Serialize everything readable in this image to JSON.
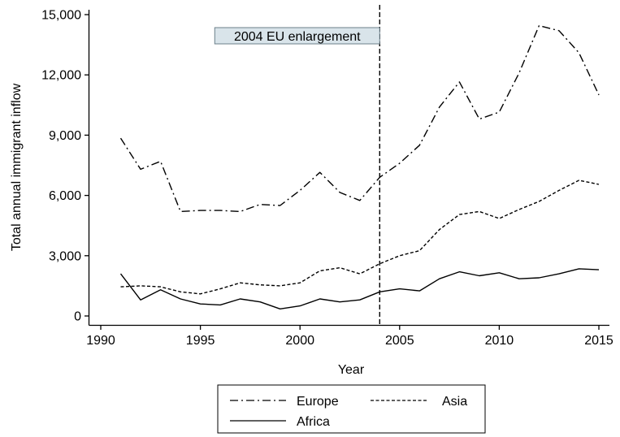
{
  "chart_data": {
    "type": "line",
    "xlabel": "Year",
    "ylabel": "Total annual immigrant inflow",
    "xlim": [
      1990,
      2015
    ],
    "ylim": [
      0,
      15000
    ],
    "xticks": [
      1990,
      1995,
      2000,
      2005,
      2010,
      2015
    ],
    "yticks": [
      0,
      3000,
      6000,
      9000,
      12000,
      15000
    ],
    "ytick_labels": [
      "0",
      "3,000",
      "6,000",
      "9,000",
      "12,000",
      "15,000"
    ],
    "grid": false,
    "legend_position": "bottom",
    "x": [
      1991,
      1992,
      1993,
      1994,
      1995,
      1996,
      1997,
      1998,
      1999,
      2000,
      2001,
      2002,
      2003,
      2004,
      2005,
      2006,
      2007,
      2008,
      2009,
      2010,
      2011,
      2012,
      2013,
      2014,
      2015
    ],
    "series": [
      {
        "name": "Europe",
        "style": "dash-dot",
        "color": "#000000",
        "values": [
          8850,
          7300,
          7700,
          5200,
          5250,
          5250,
          5200,
          5550,
          5500,
          6250,
          7150,
          6150,
          5750,
          6900,
          7600,
          8500,
          10400,
          11650,
          9800,
          10150,
          12100,
          14450,
          14200,
          13100,
          11000
        ]
      },
      {
        "name": "Asia",
        "style": "dashed",
        "color": "#000000",
        "values": [
          1450,
          1500,
          1450,
          1200,
          1100,
          1350,
          1650,
          1550,
          1500,
          1650,
          2250,
          2400,
          2100,
          2600,
          3000,
          3250,
          4300,
          5050,
          5200,
          4850,
          5300,
          5700,
          6250,
          6750,
          6550
        ]
      },
      {
        "name": "Africa",
        "style": "solid",
        "color": "#000000",
        "values": [
          2100,
          800,
          1300,
          850,
          600,
          550,
          850,
          700,
          350,
          500,
          850,
          700,
          800,
          1200,
          1350,
          1250,
          1850,
          2200,
          2000,
          2150,
          1850,
          1900,
          2100,
          2350,
          2300
        ]
      }
    ],
    "annotations": [
      {
        "x": 2004,
        "label": "2004 EU enlargement",
        "line_style": "dashed"
      }
    ]
  }
}
